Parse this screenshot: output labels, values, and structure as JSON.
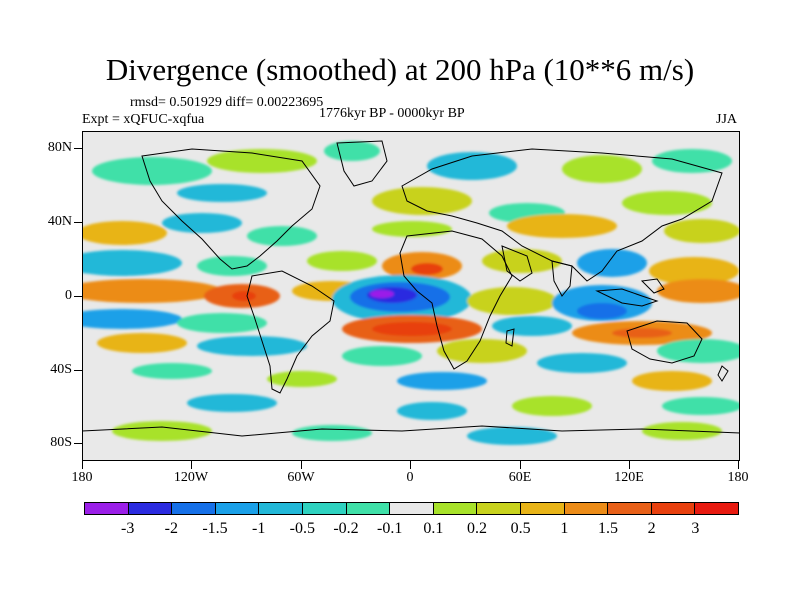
{
  "title": "Divergence (smoothed) at 200 hPa (10**6 m/s)",
  "stats_line": "rmsd= 0.501929 diff= 0.00223695",
  "experiment_line": "Expt = xQFUC-xqfua",
  "period_line": "1776kyr BP - 0000kyr BP",
  "season": "JJA",
  "y_axis_labels": [
    "80N",
    "40N",
    "0",
    "40S",
    "80S"
  ],
  "x_axis_labels": [
    "180",
    "120W",
    "60W",
    "0",
    "60E",
    "120E",
    "180"
  ],
  "colorbar": {
    "labels": [
      "-3",
      "-2",
      "-1.5",
      "-1",
      "-0.5",
      "-0.2",
      "-0.1",
      "0.1",
      "0.2",
      "0.5",
      "1",
      "1.5",
      "2",
      "3"
    ],
    "colors": [
      "#9b1fe8",
      "#2b2be0",
      "#1670e8",
      "#1aa0e8",
      "#22b8d8",
      "#2ed2c0",
      "#3fe0a8",
      "#e8e8e8",
      "#a8e22a",
      "#c8d21e",
      "#e8b418",
      "#ec8c18",
      "#e86018",
      "#e8400e",
      "#e81a10"
    ]
  }
}
